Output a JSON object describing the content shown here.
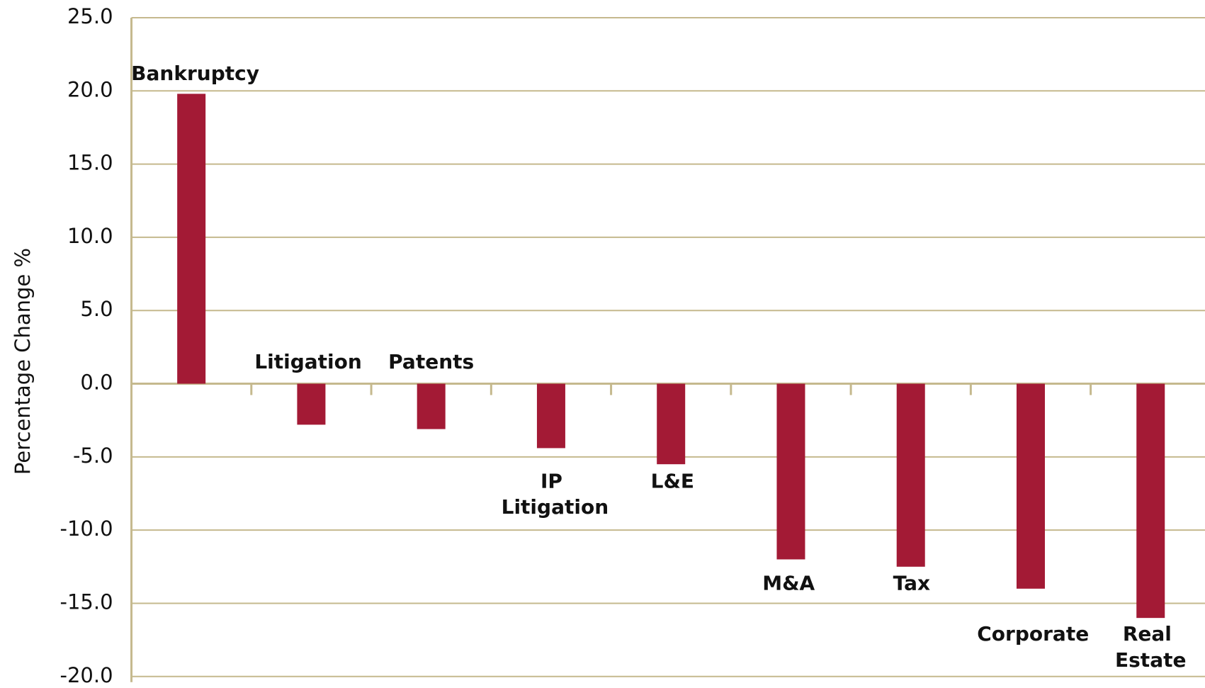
{
  "chart_data": {
    "type": "bar",
    "y_label": "Percentage Change %",
    "categories": [
      "Bankruptcy",
      "Litigation",
      "Patents",
      "IP Litigation",
      "L&E",
      "M&A",
      "Tax",
      "Corporate",
      "Real Estate"
    ],
    "values": [
      19.8,
      -2.8,
      -3.1,
      -4.4,
      -5.5,
      -12.0,
      -12.5,
      -14.0,
      -16.0
    ],
    "color": "#a31a35",
    "ylim": [
      -20,
      25
    ],
    "yticks": [
      {
        "value": -20,
        "label": "-20.0"
      },
      {
        "value": -15,
        "label": "-15.0"
      },
      {
        "value": -10,
        "label": "-10.0"
      },
      {
        "value": -5,
        "label": "-5.0"
      },
      {
        "value": 0,
        "label": "0.0"
      },
      {
        "value": 5,
        "label": "5.0"
      },
      {
        "value": 10,
        "label": "10.0"
      },
      {
        "value": 15,
        "label": "15.0"
      },
      {
        "value": 20,
        "label": "20.0"
      },
      {
        "value": 25,
        "label": "25.0"
      }
    ],
    "grid": true
  }
}
